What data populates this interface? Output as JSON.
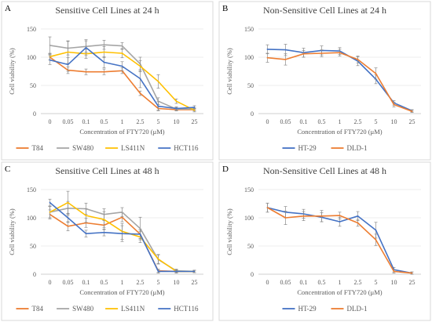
{
  "chart_data": [
    {
      "type": "line",
      "panel": "A",
      "title": "Sensitive Cell Lines at 24 h",
      "xlabel": "Concentration of FTY720 (μM)",
      "ylabel": "Cell viability (%)",
      "ylim": [
        0,
        150
      ],
      "yticks": [
        0,
        50,
        100,
        150
      ],
      "grid": true,
      "legend": "bottom",
      "categories": [
        "0",
        "0.05",
        "0.1",
        "0.5",
        "1",
        "2.5",
        "5",
        "10",
        "25"
      ],
      "series": [
        {
          "name": "T84",
          "color": "#ed7d31",
          "values": [
            100,
            77,
            74,
            74,
            76,
            36,
            9,
            7,
            7
          ],
          "errors": [
            5,
            6,
            5,
            5,
            5,
            4,
            3,
            2,
            2
          ]
        },
        {
          "name": "SW480",
          "color": "#a5a5a5",
          "values": [
            121,
            116,
            119,
            122,
            120,
            88,
            22,
            8,
            8
          ],
          "errors": [
            15,
            12,
            10,
            8,
            6,
            12,
            6,
            3,
            3
          ]
        },
        {
          "name": "LS411N",
          "color": "#ffc000",
          "values": [
            101,
            109,
            106,
            109,
            107,
            84,
            57,
            22,
            6
          ],
          "errors": [
            6,
            20,
            8,
            10,
            8,
            10,
            12,
            4,
            3
          ]
        },
        {
          "name": "HCT116",
          "color": "#4472c4",
          "values": [
            95,
            87,
            117,
            91,
            84,
            62,
            13,
            9,
            11
          ],
          "errors": [
            8,
            12,
            14,
            10,
            8,
            16,
            8,
            3,
            3
          ]
        }
      ]
    },
    {
      "type": "line",
      "panel": "B",
      "title": "Non-Sensitive Cell Lines at 24 h",
      "xlabel": "Concentration of FTY720 (μM)",
      "ylabel": "Cell viability (%)",
      "ylim": [
        0,
        150
      ],
      "yticks": [
        0,
        50,
        100,
        150
      ],
      "grid": true,
      "legend": "bottom",
      "categories": [
        "0",
        "0.05",
        "0.1",
        "0.5",
        "1",
        "2.5",
        "5",
        "10",
        "25"
      ],
      "series": [
        {
          "name": "HT-29",
          "color": "#4472c4",
          "values": [
            114,
            113,
            108,
            112,
            111,
            93,
            61,
            19,
            5
          ],
          "errors": [
            8,
            10,
            8,
            8,
            6,
            8,
            8,
            4,
            2
          ]
        },
        {
          "name": "DLD-1",
          "color": "#ed7d31",
          "values": [
            99,
            96,
            106,
            107,
            108,
            96,
            71,
            16,
            4
          ],
          "errors": [
            8,
            10,
            6,
            6,
            6,
            6,
            10,
            4,
            2
          ]
        }
      ]
    },
    {
      "type": "line",
      "panel": "C",
      "title": "Sensitive Cell Lines at 48 h",
      "xlabel": "Concentration of FTY720 (μM)",
      "ylabel": "Cell viability (%)",
      "ylim": [
        0,
        150
      ],
      "yticks": [
        0,
        50,
        100,
        150
      ],
      "grid": true,
      "legend": "bottom",
      "categories": [
        "0",
        "0.05",
        "0.1",
        "0.5",
        "1",
        "2.5",
        "5",
        "10",
        "25"
      ],
      "series": [
        {
          "name": "T84",
          "color": "#ed7d31",
          "values": [
            106,
            85,
            91,
            87,
            101,
            71,
            6,
            5,
            5
          ],
          "errors": [
            8,
            8,
            8,
            8,
            8,
            8,
            3,
            2,
            2
          ]
        },
        {
          "name": "SW480",
          "color": "#a5a5a5",
          "values": [
            110,
            117,
            116,
            106,
            110,
            81,
            26,
            6,
            5
          ],
          "errors": [
            10,
            12,
            10,
            10,
            8,
            20,
            8,
            3,
            2
          ]
        },
        {
          "name": "LS411N",
          "color": "#ffc000",
          "values": [
            110,
            127,
            104,
            97,
            76,
            66,
            27,
            5,
            5
          ],
          "errors": [
            10,
            20,
            12,
            14,
            14,
            10,
            8,
            3,
            2
          ]
        },
        {
          "name": "HCT116",
          "color": "#4472c4",
          "values": [
            127,
            100,
            72,
            74,
            72,
            71,
            5,
            5,
            5
          ],
          "errors": [
            6,
            8,
            6,
            6,
            14,
            8,
            3,
            2,
            2
          ]
        }
      ]
    },
    {
      "type": "line",
      "panel": "D",
      "title": "Non-Sensitive Cell Lines at 48 h",
      "xlabel": "Concentration of FTY720 (μM)",
      "ylabel": "Cell viability (%)",
      "ylim": [
        0,
        150
      ],
      "yticks": [
        0,
        50,
        100,
        150
      ],
      "grid": true,
      "legend": "bottom",
      "categories": [
        "0",
        "0.05",
        "0.1",
        "0.5",
        "1",
        "2.5",
        "5",
        "10",
        "25"
      ],
      "series": [
        {
          "name": "HT-29",
          "color": "#4472c4",
          "values": [
            118,
            110,
            107,
            101,
            93,
            103,
            78,
            8,
            2
          ],
          "errors": [
            8,
            10,
            8,
            8,
            8,
            8,
            14,
            4,
            2
          ]
        },
        {
          "name": "DLD-1",
          "color": "#ed7d31",
          "values": [
            118,
            100,
            103,
            103,
            104,
            91,
            61,
            5,
            2
          ],
          "errors": [
            8,
            12,
            8,
            10,
            6,
            6,
            10,
            3,
            2
          ]
        }
      ]
    }
  ]
}
